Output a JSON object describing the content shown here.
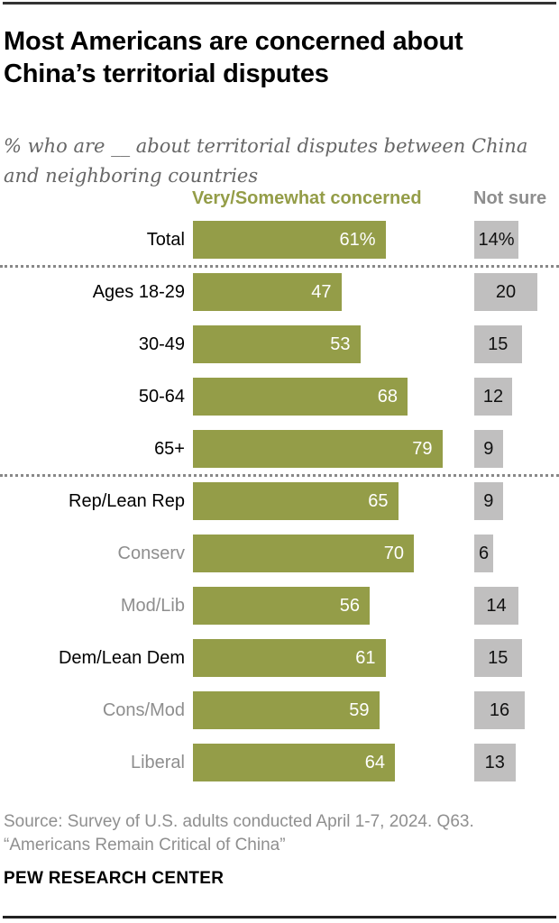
{
  "page": {
    "title_lines": [
      "Most Americans are concerned about",
      "China’s territorial disputes"
    ],
    "subtitle_lines": [
      "% who are __ about territorial disputes between China",
      "and neighboring countries"
    ]
  },
  "legend": {
    "concerned_label": "Very/Somewhat concerned",
    "not_sure_label": "Not sure"
  },
  "chart_data": {
    "type": "bar",
    "orientation": "horizontal",
    "unit": "percent",
    "title": "Most Americans are concerned about China’s territorial disputes",
    "subtitle": "% who are __ about territorial disputes between China and neighboring countries",
    "series": [
      {
        "name": "Very/Somewhat concerned",
        "color": "#949d48"
      },
      {
        "name": "Not sure",
        "color": "#c0bfbf"
      }
    ],
    "rows": [
      {
        "label": "Total",
        "emphasis": "primary",
        "concerned": 61,
        "concerned_label": "61%",
        "not_sure": 14,
        "not_sure_label": "14%"
      },
      {
        "label": "Ages 18-29",
        "emphasis": "primary",
        "concerned": 47,
        "concerned_label": "47",
        "not_sure": 20,
        "not_sure_label": "20"
      },
      {
        "label": "30-49",
        "emphasis": "primary",
        "concerned": 53,
        "concerned_label": "53",
        "not_sure": 15,
        "not_sure_label": "15"
      },
      {
        "label": "50-64",
        "emphasis": "primary",
        "concerned": 68,
        "concerned_label": "68",
        "not_sure": 12,
        "not_sure_label": "12"
      },
      {
        "label": "65+",
        "emphasis": "primary",
        "concerned": 79,
        "concerned_label": "79",
        "not_sure": 9,
        "not_sure_label": "9"
      },
      {
        "label": "Rep/Lean Rep",
        "emphasis": "primary",
        "concerned": 65,
        "concerned_label": "65",
        "not_sure": 9,
        "not_sure_label": "9"
      },
      {
        "label": "Conserv",
        "emphasis": "secondary",
        "concerned": 70,
        "concerned_label": "70",
        "not_sure": 6,
        "not_sure_label": "6"
      },
      {
        "label": "Mod/Lib",
        "emphasis": "secondary",
        "concerned": 56,
        "concerned_label": "56",
        "not_sure": 14,
        "not_sure_label": "14"
      },
      {
        "label": "Dem/Lean Dem",
        "emphasis": "primary",
        "concerned": 61,
        "concerned_label": "61",
        "not_sure": 15,
        "not_sure_label": "15"
      },
      {
        "label": "Cons/Mod",
        "emphasis": "secondary",
        "concerned": 59,
        "concerned_label": "59",
        "not_sure": 16,
        "not_sure_label": "16"
      },
      {
        "label": "Liberal",
        "emphasis": "secondary",
        "concerned": 64,
        "concerned_label": "64",
        "not_sure": 13,
        "not_sure_label": "13"
      }
    ],
    "separators_after_rows": [
      0,
      4
    ],
    "axis_range": [
      0,
      100
    ],
    "grid": false,
    "legend_position": "top"
  },
  "footer": {
    "source_lines": [
      "Source: Survey of U.S. adults conducted April 1-7, 2024. Q63.",
      "“Americans Remain Critical of China”"
    ],
    "brand": "PEW RESEARCH CENTER"
  }
}
